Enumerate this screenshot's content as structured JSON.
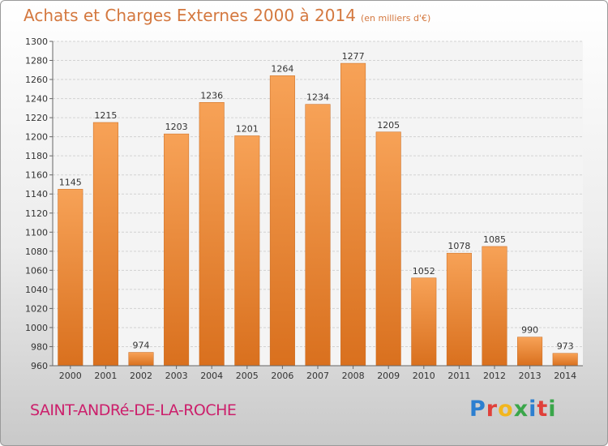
{
  "chart_data": {
    "type": "bar",
    "title": "Achats et Charges Externes 2000 à 2014",
    "subtitle": "(en milliers d'€)",
    "categories": [
      "2000",
      "2001",
      "2002",
      "2003",
      "2004",
      "2005",
      "2006",
      "2007",
      "2008",
      "2009",
      "2010",
      "2011",
      "2012",
      "2013",
      "2014"
    ],
    "values": [
      1145,
      1215,
      974,
      1203,
      1236,
      1201,
      1264,
      1234,
      1277,
      1205,
      1052,
      1078,
      1085,
      990,
      973
    ],
    "ylim": [
      960,
      1300
    ],
    "yticks": [
      960,
      980,
      1000,
      1020,
      1040,
      1060,
      1080,
      1100,
      1120,
      1140,
      1160,
      1180,
      1200,
      1220,
      1240,
      1260,
      1280,
      1300
    ],
    "grid": true,
    "bar_color": "#f0903a",
    "xlabel": "",
    "ylabel": ""
  },
  "footer": {
    "commune": "SAINT-ANDRé-DE-LA-ROCHE",
    "brand_letters": [
      {
        "ch": "P",
        "color": "#2c7fd0"
      },
      {
        "ch": "r",
        "color": "#e0403a"
      },
      {
        "ch": "o",
        "color": "#f2b61e"
      },
      {
        "ch": "x",
        "color": "#3aa64a"
      },
      {
        "ch": "i",
        "color": "#2c7fd0"
      },
      {
        "ch": "t",
        "color": "#e0403a"
      },
      {
        "ch": "i",
        "color": "#3aa64a"
      }
    ]
  }
}
